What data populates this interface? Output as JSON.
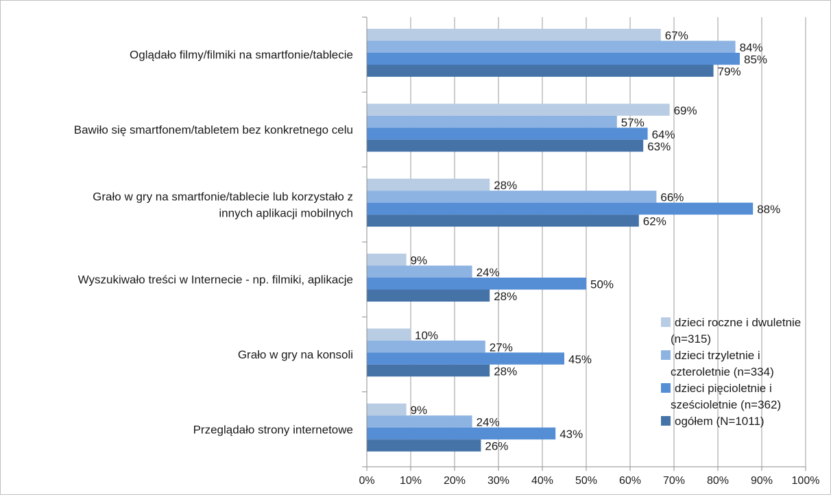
{
  "chart_data": {
    "type": "bar",
    "orientation": "horizontal",
    "categories": [
      [
        "Oglądało filmy/filmiki na smartfonie/tablecie"
      ],
      [
        "Bawiło się smartfonem/tabletem bez konkretnego celu"
      ],
      [
        "Grało w gry na smartfonie/tablecie lub korzystało z",
        "innych aplikacji mobilnych"
      ],
      [
        "Wyszukiwało treści w Internecie - np. filmiki, aplikacje"
      ],
      [
        "Grało w gry na konsoli"
      ],
      [
        "Przeglądało strony internetowe"
      ]
    ],
    "series": [
      {
        "name": "dzieci roczne i dwuletnie (n=315)",
        "legend_lines": [
          "dzieci roczne i dwuletnie",
          "(n=315)"
        ],
        "color": "#b8cce4",
        "values": [
          67,
          69,
          28,
          9,
          10,
          9
        ],
        "labels": [
          "67%",
          "69%",
          "28%",
          "9%",
          "10%",
          "9%"
        ]
      },
      {
        "name": "dzieci trzyletnie i czteroletnie (n=334)",
        "legend_lines": [
          "dzieci trzyletnie i",
          "czteroletnie (n=334)"
        ],
        "color": "#8db3e2",
        "values": [
          84,
          57,
          66,
          24,
          27,
          24
        ],
        "labels": [
          "84%",
          "57%",
          "66%",
          "24%",
          "27%",
          "24%"
        ]
      },
      {
        "name": "dzieci pięcioletnie i sześcioletnie (n=362)",
        "legend_lines": [
          "dzieci pięcioletnie i",
          "sześcioletnie (n=362)"
        ],
        "color": "#558ed5",
        "values": [
          85,
          64,
          88,
          50,
          45,
          43
        ],
        "labels": [
          "85%",
          "64%",
          "88%",
          "50%",
          "45%",
          "43%"
        ]
      },
      {
        "name": "ogółem (N=1011)",
        "legend_lines": [
          "ogółem (N=1011)"
        ],
        "color": "#4573a8",
        "values": [
          79,
          63,
          62,
          28,
          28,
          26
        ],
        "labels": [
          "79%",
          "63%",
          "62%",
          "28%",
          "28%",
          "26%"
        ]
      }
    ],
    "x_ticks": [
      "0%",
      "10%",
      "20%",
      "30%",
      "40%",
      "50%",
      "60%",
      "70%",
      "80%",
      "90%",
      "100%"
    ],
    "xlim": [
      0,
      100
    ],
    "grid": true,
    "legend_position": "right",
    "title": "",
    "xlabel": "",
    "ylabel": ""
  }
}
